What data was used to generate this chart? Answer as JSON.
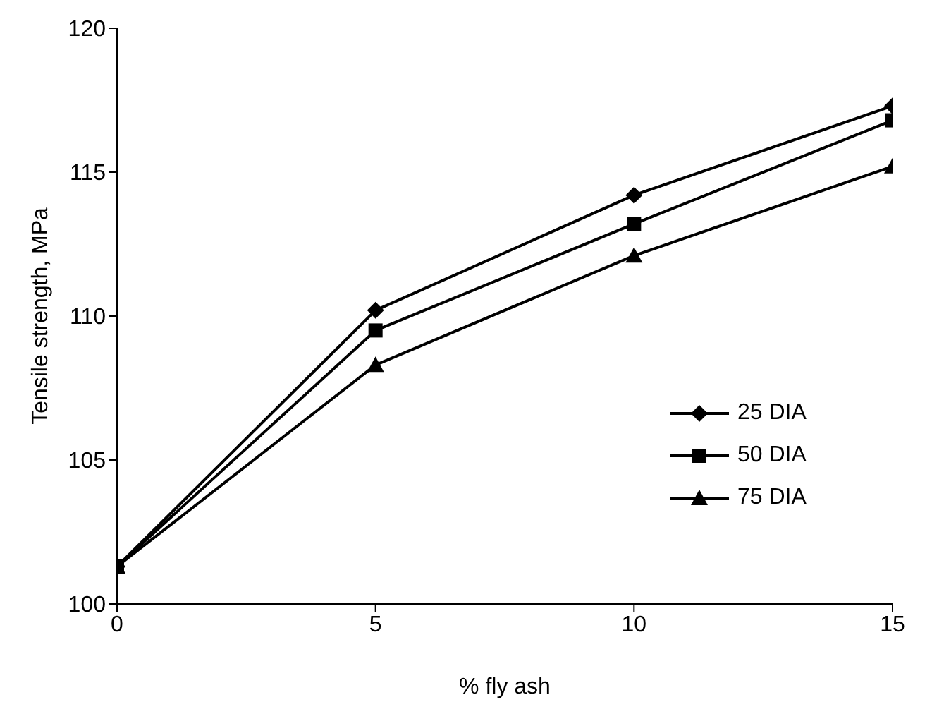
{
  "chart_data": {
    "type": "line",
    "xlabel": "% fly ash",
    "ylabel": "Tensile strength, MPa",
    "x": [
      0,
      5,
      10,
      15
    ],
    "series": [
      {
        "name": "25 DIA",
        "color": "#000000",
        "marker": "diamond",
        "values": [
          101.3,
          110.2,
          114.2,
          117.3
        ]
      },
      {
        "name": "50 DIA",
        "color": "#000000",
        "marker": "square",
        "values": [
          101.3,
          109.5,
          113.2,
          116.8
        ]
      },
      {
        "name": "75 DIA",
        "color": "#000000",
        "marker": "triangle",
        "values": [
          101.3,
          108.3,
          112.1,
          115.2
        ]
      }
    ],
    "xlim": [
      0,
      15
    ],
    "xticks": [
      0,
      5,
      10,
      15
    ],
    "ylim": [
      100,
      120
    ],
    "yticks": [
      100,
      105,
      110,
      115,
      120
    ],
    "grid": false,
    "legend": "right",
    "line_style": "solid"
  }
}
